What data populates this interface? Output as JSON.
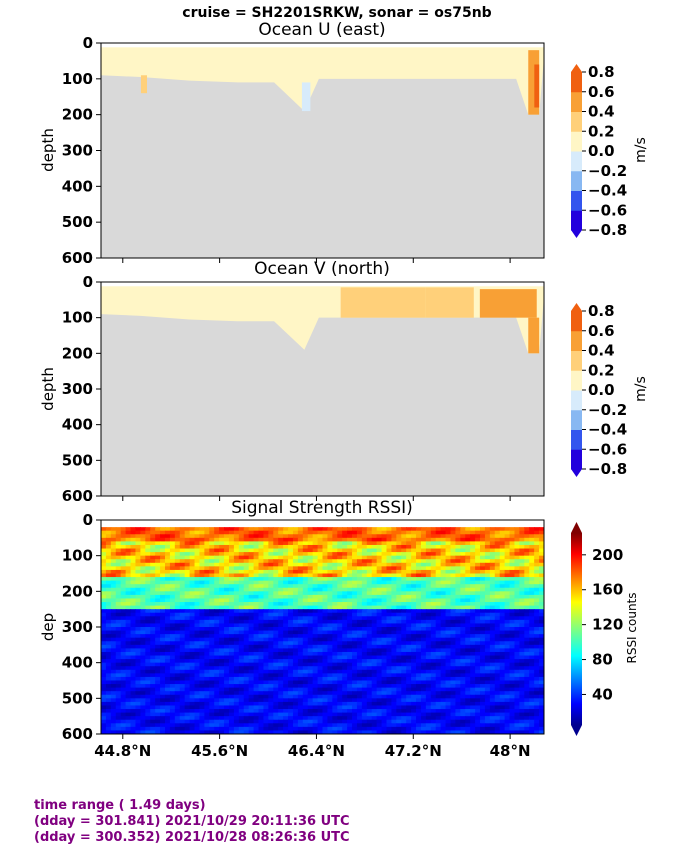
{
  "figure": {
    "suptitle": "cruise = SH2201SRKW,  sonar = os75nb"
  },
  "footer": {
    "line1": "time range ( 1.49 days)",
    "line2": "(dday = 301.841) 2021/10/29 20:11:36 UTC",
    "line3": "(dday = 300.352) 2021/10/28 08:26:36 UTC"
  },
  "colors": {
    "land_gray": "#d9d9d9",
    "footer_text": "#800080"
  },
  "chart_data": [
    {
      "type": "heatmap",
      "title": "Ocean U (east)",
      "ylabel": "depth",
      "xlabel": "",
      "ylim": [
        600,
        0
      ],
      "xlim": [
        44.62,
        48.28
      ],
      "yticks": [
        "0",
        "100",
        "200",
        "300",
        "400",
        "500",
        "600"
      ],
      "xticks": [],
      "colorbar": {
        "label": "m/s",
        "ticks": [
          "0.8",
          "0.6",
          "0.4",
          "0.2",
          "0.0",
          "−0.2",
          "−0.4",
          "−0.6",
          "−0.8"
        ],
        "levels": [
          -0.8,
          -0.6,
          -0.4,
          -0.2,
          0.0,
          0.2,
          0.4,
          0.6,
          0.8
        ],
        "colors": [
          "#2200dd",
          "#3355ee",
          "#88b8f2",
          "#d7ebfb",
          "#fff6c6",
          "#ffd07a",
          "#f8a035",
          "#f06010"
        ]
      },
      "data_depth_profile": {
        "latitude": [
          44.62,
          44.95,
          45.35,
          45.75,
          46.05,
          46.3,
          46.42,
          46.55,
          46.9,
          47.3,
          47.7,
          48.05,
          48.15,
          48.24,
          48.28
        ],
        "max_depth_m": [
          90,
          95,
          105,
          110,
          110,
          190,
          100,
          100,
          100,
          100,
          100,
          100,
          200,
          200,
          40
        ]
      },
      "features": [
        {
          "lat_range": [
            44.95,
            45.0
          ],
          "depth_range": [
            90,
            140
          ],
          "value": 0.35
        },
        {
          "lat_range": [
            46.28,
            46.35
          ],
          "depth_range": [
            110,
            190
          ],
          "value": -0.2
        },
        {
          "lat_range": [
            48.15,
            48.24
          ],
          "depth_range": [
            20,
            200
          ],
          "value": 0.5
        },
        {
          "lat_range": [
            48.2,
            48.24
          ],
          "depth_range": [
            60,
            180
          ],
          "value": 0.7
        }
      ]
    },
    {
      "type": "heatmap",
      "title": "Ocean V (north)",
      "ylabel": "depth",
      "xlabel": "",
      "ylim": [
        600,
        0
      ],
      "xlim": [
        44.62,
        48.28
      ],
      "yticks": [
        "0",
        "100",
        "200",
        "300",
        "400",
        "500",
        "600"
      ],
      "xticks": [],
      "colorbar": {
        "label": "m/s",
        "ticks": [
          "0.8",
          "0.6",
          "0.4",
          "0.2",
          "0.0",
          "−0.2",
          "−0.4",
          "−0.6",
          "−0.8"
        ],
        "levels": [
          -0.8,
          -0.6,
          -0.4,
          -0.2,
          0.0,
          0.2,
          0.4,
          0.6,
          0.8
        ],
        "colors": [
          "#2200dd",
          "#3355ee",
          "#88b8f2",
          "#d7ebfb",
          "#fff6c6",
          "#ffd07a",
          "#f8a035",
          "#f06010"
        ]
      },
      "data_depth_profile": {
        "latitude": [
          44.62,
          44.95,
          45.35,
          45.75,
          46.05,
          46.3,
          46.42,
          46.55,
          46.9,
          47.3,
          47.7,
          48.05,
          48.15,
          48.24,
          48.28
        ],
        "max_depth_m": [
          90,
          95,
          105,
          110,
          110,
          190,
          100,
          100,
          100,
          100,
          100,
          100,
          200,
          200,
          40
        ]
      },
      "features": [
        {
          "lat_range": [
            46.6,
            47.3
          ],
          "depth_range": [
            15,
            100
          ],
          "value": 0.3
        },
        {
          "lat_range": [
            47.3,
            47.7
          ],
          "depth_range": [
            15,
            100
          ],
          "value": 0.25
        },
        {
          "lat_range": [
            47.75,
            48.22
          ],
          "depth_range": [
            20,
            100
          ],
          "value": 0.5
        },
        {
          "lat_range": [
            48.15,
            48.24
          ],
          "depth_range": [
            100,
            200
          ],
          "value": 0.55
        }
      ]
    },
    {
      "type": "heatmap",
      "title": "Signal Strength RSSI)",
      "ylabel": "dep",
      "xlabel": "",
      "ylim": [
        600,
        0
      ],
      "xlim": [
        44.62,
        48.28
      ],
      "yticks": [
        "0",
        "100",
        "200",
        "300",
        "400",
        "500",
        "600"
      ],
      "xticks": [
        "44.8°N",
        "45.6°N",
        "46.4°N",
        "47.2°N",
        "48°N"
      ],
      "xtick_values": [
        44.8,
        45.6,
        46.4,
        47.2,
        48.0
      ],
      "colorbar": {
        "label": "RSSI counts",
        "ticks": [
          "200",
          "160",
          "120",
          "80",
          "40"
        ],
        "tick_values": [
          200,
          160,
          120,
          80,
          40
        ],
        "range": [
          5,
          225
        ],
        "colormap": "jet"
      },
      "bands": [
        {
          "name": "surface",
          "depth_range": [
            20,
            60
          ],
          "value_range": [
            150,
            200
          ]
        },
        {
          "name": "strong_layer",
          "depth_range": [
            60,
            160
          ],
          "value_range": [
            110,
            190
          ]
        },
        {
          "name": "bottom_echo",
          "depth_range": [
            150,
            250
          ],
          "value_range": [
            80,
            130
          ]
        },
        {
          "name": "deep",
          "depth_range": [
            250,
            600
          ],
          "value_range": [
            15,
            50
          ]
        }
      ]
    }
  ]
}
